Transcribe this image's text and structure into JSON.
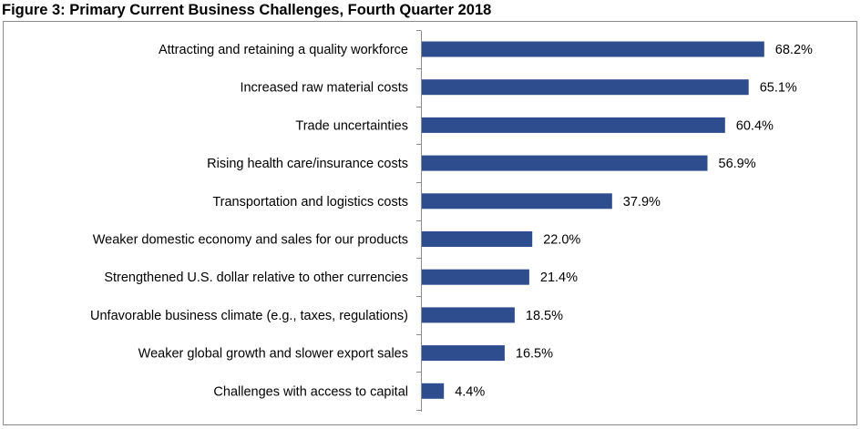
{
  "figure": {
    "title": "Figure 3: Primary Current Business Challenges, Fourth Quarter 2018"
  },
  "chart_data": {
    "type": "bar",
    "orientation": "horizontal",
    "title": "Figure 3: Primary Current Business Challenges, Fourth Quarter 2018",
    "xlabel": "",
    "ylabel": "",
    "xlim": [
      0,
      100
    ],
    "grid": false,
    "legend": "none",
    "bar_color": "#2E4D8F",
    "value_suffix": "%",
    "categories": [
      "Attracting and retaining a quality workforce",
      "Increased raw material costs",
      "Trade uncertainties",
      "Rising health care/insurance costs",
      "Transportation and logistics costs",
      "Weaker domestic economy and sales for our products",
      "Strengthened U.S. dollar relative to other currencies",
      "Unfavorable business climate (e.g., taxes, regulations)",
      "Weaker global growth and slower export sales",
      "Challenges with access to capital"
    ],
    "values": [
      68.2,
      65.1,
      60.4,
      56.9,
      37.9,
      22.0,
      21.4,
      18.5,
      16.5,
      4.4
    ],
    "value_labels": [
      "68.2%",
      "65.1%",
      "60.4%",
      "56.9%",
      "37.9%",
      "22.0%",
      "21.4%",
      "18.5%",
      "16.5%",
      "4.4%"
    ]
  }
}
